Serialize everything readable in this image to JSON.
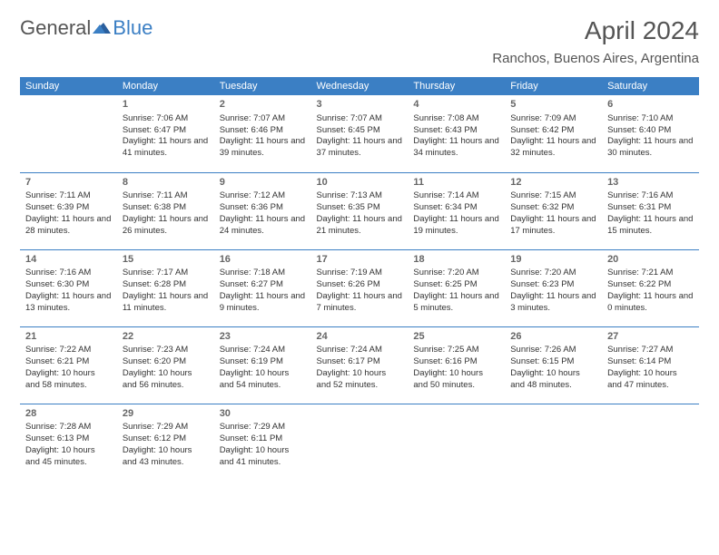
{
  "logo": {
    "text1": "General",
    "text2": "Blue"
  },
  "title": "April 2024",
  "location": "Ranchos, Buenos Aires, Argentina",
  "colors": {
    "header_bg": "#3b7fc4",
    "header_text": "#ffffff",
    "body_text": "#333333",
    "title_text": "#555555",
    "divider": "#3b7fc4",
    "background": "#ffffff"
  },
  "headers": [
    "Sunday",
    "Monday",
    "Tuesday",
    "Wednesday",
    "Thursday",
    "Friday",
    "Saturday"
  ],
  "weeks": [
    [
      null,
      {
        "n": "1",
        "sr": "7:06 AM",
        "ss": "6:47 PM",
        "dl": "11 hours and 41 minutes."
      },
      {
        "n": "2",
        "sr": "7:07 AM",
        "ss": "6:46 PM",
        "dl": "11 hours and 39 minutes."
      },
      {
        "n": "3",
        "sr": "7:07 AM",
        "ss": "6:45 PM",
        "dl": "11 hours and 37 minutes."
      },
      {
        "n": "4",
        "sr": "7:08 AM",
        "ss": "6:43 PM",
        "dl": "11 hours and 34 minutes."
      },
      {
        "n": "5",
        "sr": "7:09 AM",
        "ss": "6:42 PM",
        "dl": "11 hours and 32 minutes."
      },
      {
        "n": "6",
        "sr": "7:10 AM",
        "ss": "6:40 PM",
        "dl": "11 hours and 30 minutes."
      }
    ],
    [
      {
        "n": "7",
        "sr": "7:11 AM",
        "ss": "6:39 PM",
        "dl": "11 hours and 28 minutes."
      },
      {
        "n": "8",
        "sr": "7:11 AM",
        "ss": "6:38 PM",
        "dl": "11 hours and 26 minutes."
      },
      {
        "n": "9",
        "sr": "7:12 AM",
        "ss": "6:36 PM",
        "dl": "11 hours and 24 minutes."
      },
      {
        "n": "10",
        "sr": "7:13 AM",
        "ss": "6:35 PM",
        "dl": "11 hours and 21 minutes."
      },
      {
        "n": "11",
        "sr": "7:14 AM",
        "ss": "6:34 PM",
        "dl": "11 hours and 19 minutes."
      },
      {
        "n": "12",
        "sr": "7:15 AM",
        "ss": "6:32 PM",
        "dl": "11 hours and 17 minutes."
      },
      {
        "n": "13",
        "sr": "7:16 AM",
        "ss": "6:31 PM",
        "dl": "11 hours and 15 minutes."
      }
    ],
    [
      {
        "n": "14",
        "sr": "7:16 AM",
        "ss": "6:30 PM",
        "dl": "11 hours and 13 minutes."
      },
      {
        "n": "15",
        "sr": "7:17 AM",
        "ss": "6:28 PM",
        "dl": "11 hours and 11 minutes."
      },
      {
        "n": "16",
        "sr": "7:18 AM",
        "ss": "6:27 PM",
        "dl": "11 hours and 9 minutes."
      },
      {
        "n": "17",
        "sr": "7:19 AM",
        "ss": "6:26 PM",
        "dl": "11 hours and 7 minutes."
      },
      {
        "n": "18",
        "sr": "7:20 AM",
        "ss": "6:25 PM",
        "dl": "11 hours and 5 minutes."
      },
      {
        "n": "19",
        "sr": "7:20 AM",
        "ss": "6:23 PM",
        "dl": "11 hours and 3 minutes."
      },
      {
        "n": "20",
        "sr": "7:21 AM",
        "ss": "6:22 PM",
        "dl": "11 hours and 0 minutes."
      }
    ],
    [
      {
        "n": "21",
        "sr": "7:22 AM",
        "ss": "6:21 PM",
        "dl": "10 hours and 58 minutes."
      },
      {
        "n": "22",
        "sr": "7:23 AM",
        "ss": "6:20 PM",
        "dl": "10 hours and 56 minutes."
      },
      {
        "n": "23",
        "sr": "7:24 AM",
        "ss": "6:19 PM",
        "dl": "10 hours and 54 minutes."
      },
      {
        "n": "24",
        "sr": "7:24 AM",
        "ss": "6:17 PM",
        "dl": "10 hours and 52 minutes."
      },
      {
        "n": "25",
        "sr": "7:25 AM",
        "ss": "6:16 PM",
        "dl": "10 hours and 50 minutes."
      },
      {
        "n": "26",
        "sr": "7:26 AM",
        "ss": "6:15 PM",
        "dl": "10 hours and 48 minutes."
      },
      {
        "n": "27",
        "sr": "7:27 AM",
        "ss": "6:14 PM",
        "dl": "10 hours and 47 minutes."
      }
    ],
    [
      {
        "n": "28",
        "sr": "7:28 AM",
        "ss": "6:13 PM",
        "dl": "10 hours and 45 minutes."
      },
      {
        "n": "29",
        "sr": "7:29 AM",
        "ss": "6:12 PM",
        "dl": "10 hours and 43 minutes."
      },
      {
        "n": "30",
        "sr": "7:29 AM",
        "ss": "6:11 PM",
        "dl": "10 hours and 41 minutes."
      },
      null,
      null,
      null,
      null
    ]
  ],
  "labels": {
    "sunrise": "Sunrise:",
    "sunset": "Sunset:",
    "daylight": "Daylight:"
  }
}
